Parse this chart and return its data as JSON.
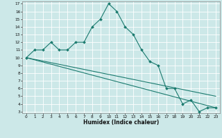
{
  "xlabel": "Humidex (Indice chaleur)",
  "background_color": "#cce8e8",
  "grid_color": "#ffffff",
  "line_color": "#1a7a6e",
  "xlim": [
    0,
    23
  ],
  "ylim": [
    3,
    17
  ],
  "xticks": [
    0,
    1,
    2,
    3,
    4,
    5,
    6,
    7,
    8,
    9,
    10,
    11,
    12,
    13,
    14,
    15,
    16,
    17,
    18,
    19,
    20,
    21,
    22,
    23
  ],
  "yticks": [
    3,
    4,
    5,
    6,
    7,
    8,
    9,
    10,
    11,
    12,
    13,
    14,
    15,
    16,
    17
  ],
  "line1_x": [
    0,
    1,
    2,
    3,
    4,
    5,
    6,
    7,
    8,
    9,
    10,
    11,
    12,
    13,
    14,
    15,
    16,
    17,
    18,
    19,
    20,
    21,
    22,
    23
  ],
  "line1_y": [
    10,
    11,
    11,
    12,
    11,
    11,
    12,
    12,
    14,
    15,
    17,
    16,
    14,
    13,
    11,
    9.5,
    9,
    6,
    6,
    4,
    4.5,
    3,
    3.5,
    3.5
  ],
  "line2_x": [
    0,
    23
  ],
  "line2_y": [
    10,
    5.0
  ],
  "line3_x": [
    0,
    23
  ],
  "line3_y": [
    10,
    3.5
  ]
}
